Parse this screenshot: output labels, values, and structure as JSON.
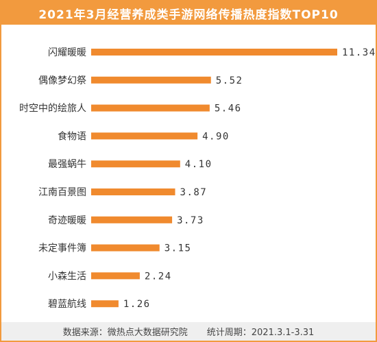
{
  "title": "2021年3月经营养成类手游网络传播热度指数TOP10",
  "colors": {
    "accent": "#f29a3e",
    "bar": "#f08a2e",
    "text": "#333333",
    "footer_bg": "#efefef"
  },
  "footer": {
    "source": "数据来源：微热点大数据研究院",
    "period": "统计周期：2021.3.1-3.31"
  },
  "chart_data": {
    "type": "bar",
    "orientation": "horizontal",
    "categories": [
      "闪耀暖暖",
      "偶像梦幻祭",
      "时空中的绘旅人",
      "食物语",
      "最强蜗牛",
      "江南百景图",
      "奇迹暖暖",
      "未定事件簿",
      "小森生活",
      "碧蓝航线"
    ],
    "values": [
      11.34,
      5.52,
      5.46,
      4.9,
      4.1,
      3.87,
      3.73,
      3.15,
      2.24,
      1.26
    ],
    "value_labels": [
      "11.34",
      "5.52",
      "5.46",
      "4.90",
      "4.10",
      "3.87",
      "3.73",
      "3.15",
      "2.24",
      "1.26"
    ],
    "xlim": [
      0,
      11.34
    ],
    "grid": false,
    "legend": "none"
  }
}
